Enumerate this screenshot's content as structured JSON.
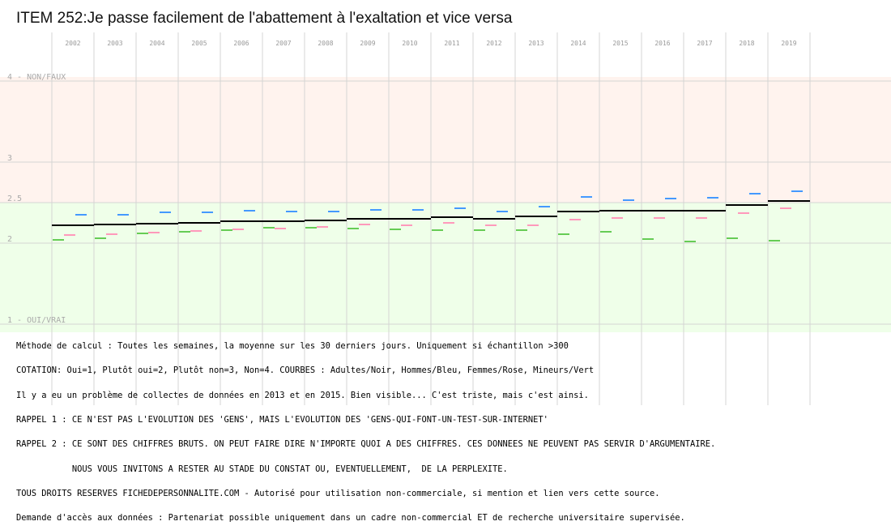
{
  "chart_data": {
    "type": "scatter",
    "title": "ITEM 252:Je passe facilement de l'abattement à l'exaltation et vice versa",
    "x": [
      "2002",
      "2003",
      "2004",
      "2005",
      "2006",
      "2007",
      "2008",
      "2009",
      "2010",
      "2011",
      "2012",
      "2013",
      "2014",
      "2015",
      "2016",
      "2017",
      "2018",
      "2019"
    ],
    "y_ticks": [
      {
        "value": 4,
        "label": "4 - NON/FAUX"
      },
      {
        "value": 3,
        "label": "3"
      },
      {
        "value": 2.5,
        "label": "2.5"
      },
      {
        "value": 2,
        "label": "2"
      },
      {
        "value": 1,
        "label": "1 - OUI/VRAI"
      }
    ],
    "ylim": [
      1,
      4
    ],
    "grid": true,
    "background_bands": [
      {
        "from": 2.5,
        "to": 4.05,
        "color": "#fff3ee"
      },
      {
        "from": 0.9,
        "to": 2.5,
        "color": "#efffe9"
      }
    ],
    "series": [
      {
        "key": "adultes",
        "color": "#000000",
        "values": [
          2.22,
          2.23,
          2.24,
          2.25,
          2.27,
          2.27,
          2.28,
          2.3,
          2.3,
          2.32,
          2.3,
          2.33,
          2.39,
          2.4,
          2.4,
          2.4,
          2.47,
          2.52
        ]
      },
      {
        "key": "hommes",
        "color": "#4499ff",
        "values": [
          2.35,
          2.35,
          2.38,
          2.38,
          2.4,
          2.39,
          2.39,
          2.41,
          2.41,
          2.43,
          2.39,
          2.45,
          2.57,
          2.53,
          2.55,
          2.56,
          2.61,
          2.64
        ]
      },
      {
        "key": "femmes",
        "color": "#ff99bb",
        "values": [
          2.1,
          2.11,
          2.13,
          2.15,
          2.17,
          2.18,
          2.2,
          2.23,
          2.22,
          2.25,
          2.22,
          2.22,
          2.29,
          2.31,
          2.31,
          2.31,
          2.37,
          2.43
        ]
      },
      {
        "key": "mineurs",
        "color": "#66cc55",
        "values": [
          2.04,
          2.06,
          2.12,
          2.14,
          2.16,
          2.19,
          2.19,
          2.18,
          2.17,
          2.16,
          2.16,
          2.16,
          2.11,
          2.14,
          2.05,
          2.02,
          2.06,
          2.03
        ]
      }
    ]
  },
  "notes": [
    "Méthode de calcul : Toutes les semaines, la moyenne sur les 30 derniers jours. Uniquement si échantillon >300",
    "COTATION: Oui=1, Plutôt oui=2, Plutôt non=3, Non=4. COURBES : Adultes/Noir, Hommes/Bleu, Femmes/Rose, Mineurs/Vert",
    "Il y a eu un problème de collectes de données en 2013 et en 2015. Bien visible... C'est triste, mais c'est ainsi.",
    "RAPPEL 1 : CE N'EST PAS L'EVOLUTION DES 'GENS', MAIS L'EVOLUTION DES 'GENS-QUI-FONT-UN-TEST-SUR-INTERNET'",
    "RAPPEL 2 : CE SONT DES CHIFFRES BRUTS. ON PEUT FAIRE DIRE N'IMPORTE QUOI A DES CHIFFRES. CES DONNEES NE PEUVENT PAS SERVIR D'ARGUMENTAIRE.",
    "           NOUS VOUS INVITONS A RESTER AU STADE DU CONSTAT OU, EVENTUELLEMENT,  DE LA PERPLEXITE.",
    "TOUS DROITS RESERVES FICHEDEPERSONNALITE.COM - Autorisé pour utilisation non-commerciale, si mention et lien vers cette source.",
    "Demande d'accès aux données : Partenariat possible uniquement dans un cadre non-commercial ET de recherche universitaire supervisée."
  ]
}
